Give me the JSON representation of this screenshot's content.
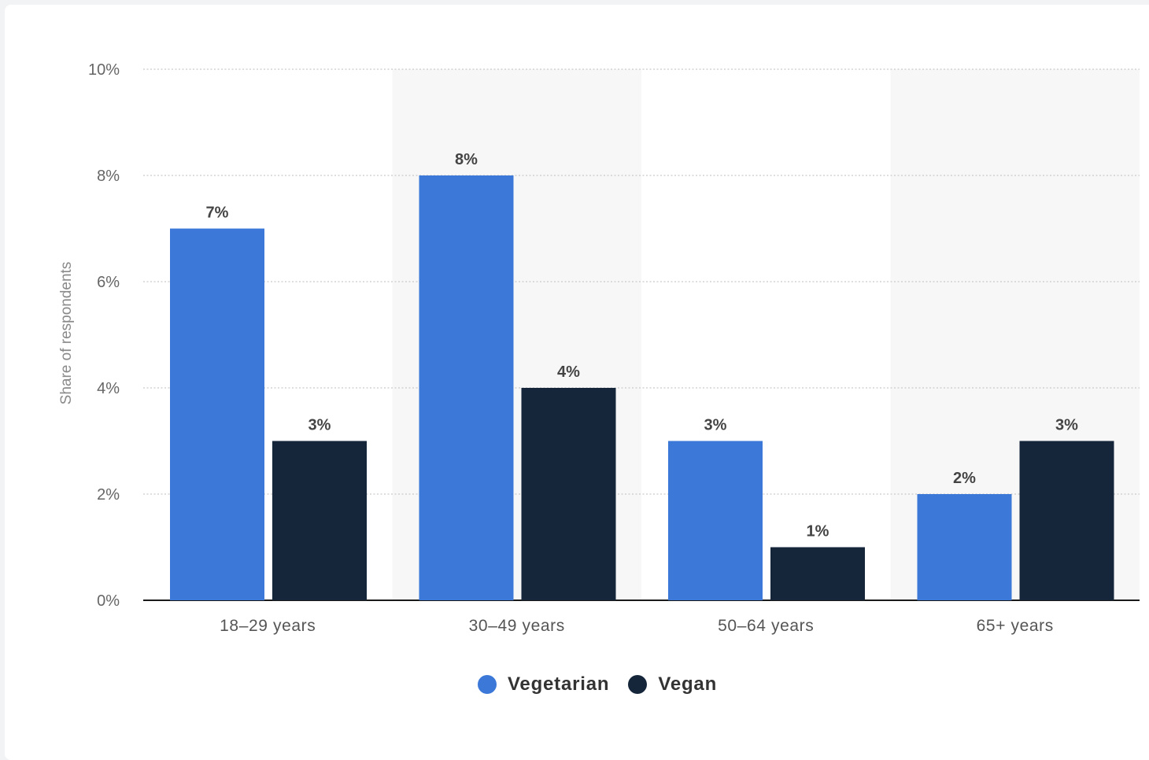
{
  "chart_data": {
    "type": "bar",
    "title": "",
    "xlabel": "",
    "ylabel": "Share of respondents",
    "categories": [
      "18-29 years",
      "30-49 years",
      "50-64 years",
      "65+ years"
    ],
    "series": [
      {
        "name": "Vegetarian",
        "color": "#3b78d8",
        "values": [
          7,
          8,
          3,
          2
        ]
      },
      {
        "name": "Vegan",
        "color": "#15263b",
        "values": [
          3,
          4,
          1,
          3
        ]
      }
    ],
    "data_labels": {
      "Vegetarian": [
        "7%",
        "8%",
        "3%",
        "2%"
      ],
      "Vegan": [
        "3%",
        "4%",
        "1%",
        "3%"
      ]
    },
    "ylim": [
      0,
      10
    ],
    "yticks": [
      0,
      2,
      4,
      6,
      8,
      10
    ],
    "ytick_labels": [
      "0%",
      "2%",
      "4%",
      "6%",
      "8%",
      "10%"
    ],
    "grid": true,
    "legend_position": "bottom-center",
    "category_labels": [
      "18–29 years",
      "30–49 years",
      "50–64 years",
      "65+ years"
    ]
  },
  "legend": {
    "items": [
      {
        "label": "Vegetarian",
        "color": "#3b78d8"
      },
      {
        "label": "Vegan",
        "color": "#15263b"
      }
    ]
  }
}
